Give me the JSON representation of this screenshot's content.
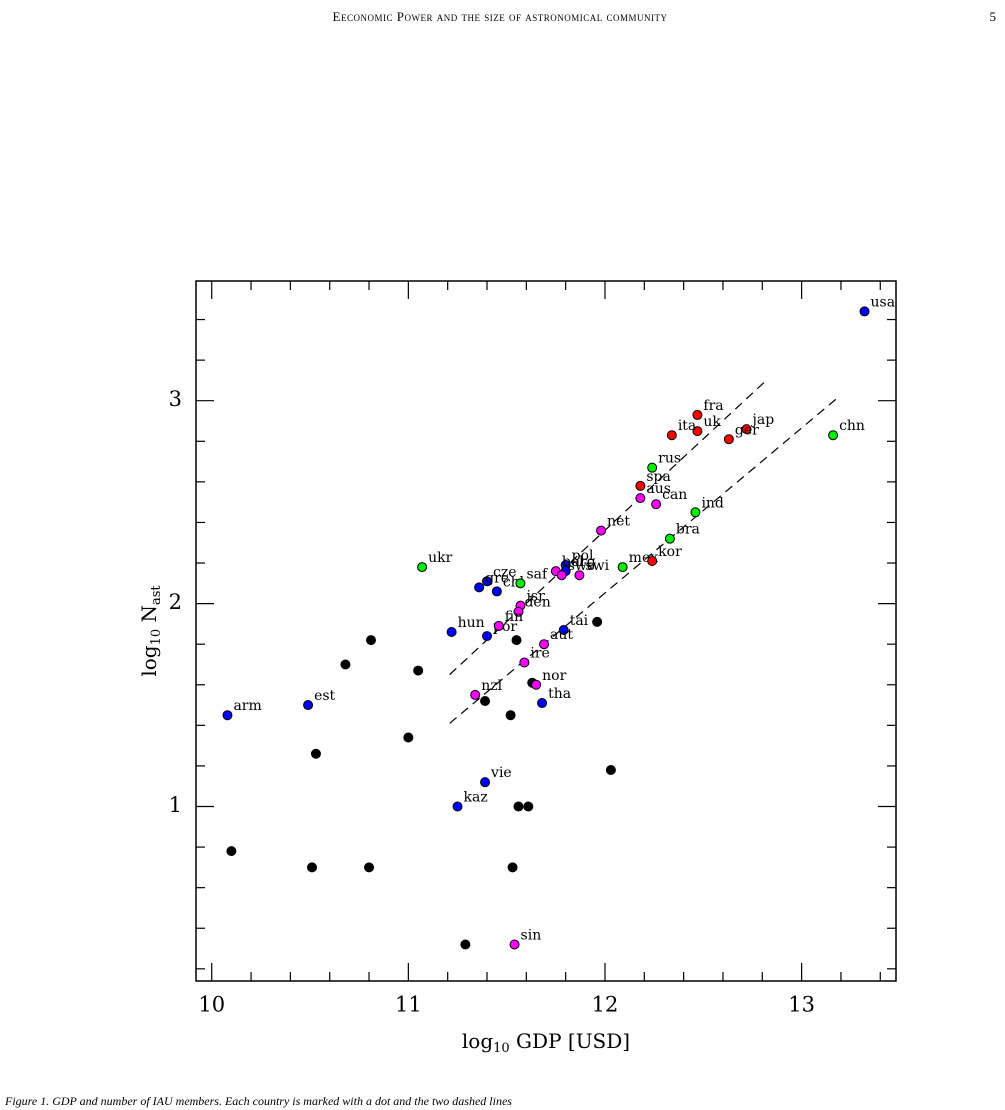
{
  "header": {
    "title": "Eeconomic Power and the size of astronomical community",
    "page": "5"
  },
  "caption": "Figure 1. GDP and number of IAU members. Each country is marked with a dot and the two dashed lines",
  "chart_data": {
    "type": "scatter",
    "xlabel": [
      "log",
      "10",
      " GDP [USD]"
    ],
    "ylabel": [
      "log",
      "10",
      " N",
      "ast"
    ],
    "xlim": [
      9.92,
      13.48
    ],
    "ylim": [
      0.14,
      3.59
    ],
    "xticks": [
      10,
      11,
      12,
      13
    ],
    "yticks": [
      1,
      2,
      3
    ],
    "xticks_minor": [
      10.2,
      10.4,
      10.6,
      10.8,
      11.2,
      11.4,
      11.6,
      11.8,
      12.2,
      12.4,
      12.6,
      12.8,
      13.2,
      13.4
    ],
    "yticks_minor": [
      0.2,
      0.4,
      0.6,
      0.8,
      1.2,
      1.4,
      1.6,
      1.8,
      2.2,
      2.4,
      2.6,
      2.8,
      3.2,
      3.4
    ],
    "series": [
      {
        "color": "#000000",
        "x": [
          10.81,
          10.68,
          11.05,
          11.55,
          11.96,
          11.0,
          10.53,
          11.39,
          11.52,
          11.63,
          12.03,
          11.56,
          11.61,
          10.1,
          10.51,
          10.8,
          11.53,
          11.29
        ],
        "values": [
          1.82,
          1.7,
          1.67,
          1.82,
          1.91,
          1.34,
          1.26,
          1.52,
          1.45,
          1.61,
          1.18,
          1.0,
          1.0,
          0.78,
          0.7,
          0.7,
          0.7,
          0.32
        ]
      },
      {
        "color": "#0000ff",
        "x": [
          13.32,
          11.8,
          11.8,
          11.4,
          11.36,
          11.45,
          11.22,
          11.4,
          11.79,
          11.68,
          10.08,
          10.49,
          11.39,
          11.25
        ],
        "values": [
          3.44,
          2.19,
          2.16,
          2.11,
          2.08,
          2.06,
          1.86,
          1.84,
          1.87,
          1.51,
          1.45,
          1.5,
          1.12,
          1.0
        ],
        "labels": [
          "usa",
          "pol",
          "arg",
          "cze",
          "gre",
          "chl",
          "hun",
          "por",
          "tai",
          "tha",
          "arm",
          "est",
          "vie",
          "kaz"
        ]
      },
      {
        "color": "#00ee00",
        "x": [
          13.16,
          12.24,
          12.46,
          12.33,
          12.09,
          11.07,
          11.57
        ],
        "values": [
          2.83,
          2.67,
          2.45,
          2.32,
          2.18,
          2.18,
          2.1
        ],
        "labels": [
          "chn",
          "rus",
          "ind",
          "bra",
          "mex",
          "ukr",
          "saf"
        ]
      },
      {
        "color": "#ff0000",
        "x": [
          12.47,
          12.47,
          12.72,
          12.63,
          12.34,
          12.18,
          12.24
        ],
        "values": [
          2.93,
          2.85,
          2.86,
          2.81,
          2.83,
          2.58,
          2.21
        ],
        "labels": [
          "fra",
          "uk",
          "jap",
          "ger",
          "ita",
          "spa",
          "kor"
        ]
      },
      {
        "color": "#ff00ff",
        "x": [
          12.18,
          12.26,
          11.98,
          11.75,
          11.78,
          11.87,
          11.57,
          11.56,
          11.46,
          11.69,
          11.59,
          11.65,
          11.34,
          11.54
        ],
        "values": [
          2.52,
          2.49,
          2.36,
          2.16,
          2.14,
          2.14,
          1.99,
          1.96,
          1.89,
          1.8,
          1.71,
          1.6,
          1.55,
          0.32
        ],
        "labels": [
          "aus",
          "can",
          "net",
          "bel",
          "swe",
          "swi",
          "isr",
          "den",
          "fin",
          "aut",
          "ire",
          "nor",
          "nzl",
          "sin"
        ]
      }
    ],
    "fit_lines": [
      {
        "x": [
          11.21,
          12.82
        ],
        "values": [
          1.65,
          3.1
        ]
      },
      {
        "x": [
          11.21,
          13.19
        ],
        "values": [
          1.41,
          3.02
        ]
      }
    ]
  }
}
